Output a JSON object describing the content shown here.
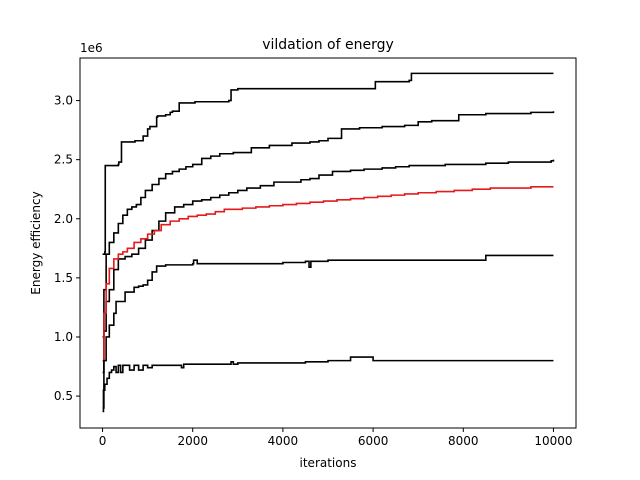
{
  "chart_data": {
    "type": "line",
    "title": "vildation of energy",
    "xlabel": "iterations",
    "ylabel": "Energy efficiency",
    "y_offset_label": "1e6",
    "xlim": [
      -500,
      10500
    ],
    "ylim": [
      230000,
      3360000
    ],
    "xticks": [
      0,
      2000,
      4000,
      6000,
      8000,
      10000
    ],
    "xtick_labels": [
      "0",
      "2000",
      "4000",
      "6000",
      "8000",
      "10000"
    ],
    "yticks": [
      500000,
      1000000,
      1500000,
      2000000,
      2500000,
      3000000
    ],
    "ytick_labels": [
      "0.5",
      "1.0",
      "1.5",
      "2.0",
      "2.5",
      "3.0"
    ],
    "grid": false,
    "legend": "none",
    "series": [
      {
        "color": "#000000",
        "x": [
          0,
          50,
          60,
          350,
          360,
          400,
          420,
          700,
          720,
          900,
          1000,
          1050,
          1200,
          1220,
          1400,
          1500,
          1550,
          1700,
          2000,
          2050,
          2250,
          2800,
          2850,
          3000,
          6000,
          6050,
          6800,
          6850,
          10000
        ],
        "y": [
          1700000,
          1720000,
          2450000,
          2460000,
          2480000,
          2480000,
          2650000,
          2650000,
          2660000,
          2700000,
          2760000,
          2780000,
          2860000,
          2870000,
          2880000,
          2900000,
          2910000,
          2980000,
          2980000,
          2990000,
          2990000,
          3000000,
          3090000,
          3100000,
          3100000,
          3160000,
          3170000,
          3230000,
          3230000
        ]
      },
      {
        "color": "#000000",
        "x": [
          0,
          30,
          80,
          150,
          250,
          350,
          450,
          550,
          650,
          750,
          850,
          950,
          1100,
          1250,
          1400,
          1550,
          1700,
          1850,
          2000,
          2200,
          2400,
          2600,
          2900,
          3300,
          3700,
          4200,
          4600,
          4800,
          5000,
          5300,
          5700,
          6200,
          6700,
          7000,
          7300,
          7900,
          8500,
          9000,
          9500,
          9950,
          10000
        ],
        "y": [
          1000000,
          1400000,
          1700000,
          1800000,
          1880000,
          1960000,
          2030000,
          2080000,
          2100000,
          2120000,
          2180000,
          2240000,
          2290000,
          2340000,
          2380000,
          2400000,
          2420000,
          2440000,
          2460000,
          2510000,
          2530000,
          2550000,
          2560000,
          2600000,
          2620000,
          2640000,
          2650000,
          2660000,
          2680000,
          2760000,
          2770000,
          2780000,
          2790000,
          2820000,
          2830000,
          2880000,
          2890000,
          2890000,
          2900000,
          2900000,
          2910000
        ]
      },
      {
        "color": "#000000",
        "x": [
          0,
          30,
          80,
          150,
          250,
          350,
          500,
          650,
          800,
          950,
          1100,
          1250,
          1400,
          1600,
          1800,
          2000,
          2200,
          2400,
          2600,
          2800,
          3000,
          3200,
          3500,
          3800,
          4200,
          4400,
          4600,
          4800,
          5100,
          5500,
          5800,
          6200,
          6500,
          6800,
          7200,
          7600,
          8000,
          8500,
          9000,
          9500,
          9950,
          10000
        ],
        "y": [
          700000,
          1050000,
          1300000,
          1400000,
          1570000,
          1660000,
          1680000,
          1700000,
          1750000,
          1820000,
          1900000,
          1980000,
          2050000,
          2100000,
          2120000,
          2150000,
          2160000,
          2180000,
          2200000,
          2220000,
          2240000,
          2260000,
          2280000,
          2310000,
          2310000,
          2330000,
          2340000,
          2370000,
          2400000,
          2410000,
          2420000,
          2430000,
          2440000,
          2450000,
          2450000,
          2460000,
          2460000,
          2470000,
          2480000,
          2480000,
          2490000,
          2500000
        ]
      },
      {
        "color": "#e41a1c",
        "x": [
          0,
          30,
          80,
          150,
          250,
          350,
          450,
          550,
          700,
          850,
          1000,
          1150,
          1300,
          1500,
          1700,
          1900,
          2100,
          2300,
          2500,
          2700,
          2900,
          3100,
          3400,
          3700,
          4000,
          4300,
          4600,
          4900,
          5200,
          5500,
          5800,
          6100,
          6400,
          6700,
          7000,
          7400,
          7800,
          8200,
          8600,
          9000,
          9500,
          10000
        ],
        "y": [
          800000,
          1200000,
          1450000,
          1580000,
          1660000,
          1700000,
          1720000,
          1750000,
          1800000,
          1830000,
          1870000,
          1900000,
          1950000,
          1980000,
          2000000,
          2020000,
          2030000,
          2040000,
          2060000,
          2080000,
          2080000,
          2090000,
          2100000,
          2110000,
          2120000,
          2130000,
          2140000,
          2150000,
          2160000,
          2170000,
          2180000,
          2190000,
          2200000,
          2210000,
          2220000,
          2230000,
          2240000,
          2250000,
          2260000,
          2260000,
          2270000,
          2270000
        ]
      },
      {
        "color": "#000000",
        "x": [
          0,
          30,
          80,
          150,
          250,
          300,
          500,
          700,
          800,
          900,
          1000,
          1100,
          1200,
          1400,
          1600,
          1900,
          2000,
          2020,
          2100,
          2500,
          3000,
          3500,
          4000,
          4500,
          4580,
          4620,
          5000,
          5600,
          6000,
          6500,
          7000,
          7500,
          8000,
          8400,
          8500,
          9000,
          10000
        ],
        "y": [
          400000,
          800000,
          1000000,
          1100000,
          1200000,
          1300000,
          1380000,
          1420000,
          1430000,
          1440000,
          1480000,
          1550000,
          1600000,
          1610000,
          1610000,
          1610000,
          1620000,
          1650000,
          1620000,
          1620000,
          1620000,
          1620000,
          1630000,
          1640000,
          1590000,
          1640000,
          1650000,
          1650000,
          1650000,
          1650000,
          1650000,
          1650000,
          1650000,
          1650000,
          1690000,
          1690000,
          1690000
        ]
      },
      {
        "color": "#000000",
        "x": [
          0,
          20,
          50,
          100,
          150,
          200,
          250,
          300,
          350,
          400,
          450,
          500,
          600,
          700,
          800,
          900,
          1000,
          1100,
          1200,
          1500,
          1700,
          1750,
          1800,
          2000,
          2500,
          2800,
          2850,
          2900,
          3000,
          3500,
          4000,
          4500,
          5000,
          5500,
          5600,
          6000,
          6500,
          7000,
          8000,
          9000,
          10000
        ],
        "y": [
          370000,
          550000,
          600000,
          650000,
          700000,
          720000,
          750000,
          700000,
          760000,
          700000,
          760000,
          760000,
          720000,
          760000,
          720000,
          760000,
          740000,
          760000,
          760000,
          760000,
          760000,
          740000,
          770000,
          770000,
          770000,
          770000,
          790000,
          770000,
          780000,
          780000,
          780000,
          790000,
          800000,
          830000,
          830000,
          800000,
          800000,
          800000,
          800000,
          800000,
          800000
        ]
      }
    ]
  }
}
